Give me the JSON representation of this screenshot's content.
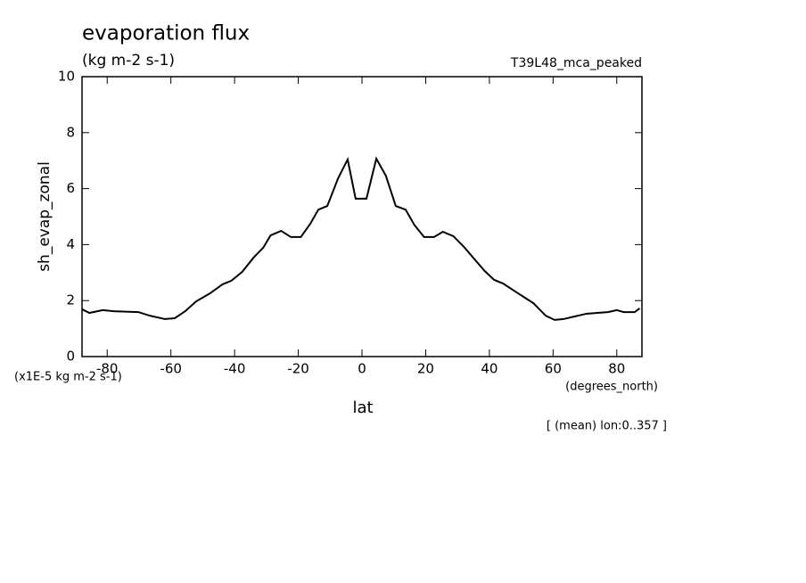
{
  "chart_data": {
    "type": "line",
    "title": "evaporation flux",
    "subtitle": "(kg m-2 s-1)",
    "dataset_label": "T39L48_mca_peaked",
    "y_label": "sh_evap_zonal",
    "y_units": "(x1E-5 kg m-2 s-1)",
    "x_label": "lat",
    "x_units": "(degrees_north)",
    "annotation": "[ (mean) lon:0..357 ]",
    "x": [
      -87.9,
      -85.6,
      -81.4,
      -78,
      -70.2,
      -66.6,
      -61.9,
      -58.8,
      -55.5,
      -52.1,
      -47.7,
      -43.8,
      -41,
      -37.6,
      -34,
      -31,
      -28.7,
      -25.4,
      -22.3,
      -19.2,
      -16.2,
      -13.7,
      -10.9,
      -7.5,
      -4.5,
      -2,
      1.4,
      4.5,
      7.5,
      10.6,
      13.7,
      16.4,
      19.5,
      22.6,
      25.4,
      28.7,
      32,
      35.4,
      38.5,
      41.5,
      44.3,
      48.2,
      51.6,
      53.8,
      57.7,
      60.5,
      63.3,
      66.6,
      70.5,
      73.9,
      77.2,
      80,
      82.2,
      85.6,
      87.2
    ],
    "series": [
      {
        "name": "sh_evap_zonal",
        "color": "#000000",
        "values": [
          1.69,
          1.56,
          1.66,
          1.62,
          1.59,
          1.46,
          1.34,
          1.37,
          1.62,
          1.97,
          2.26,
          2.58,
          2.71,
          3.03,
          3.54,
          3.89,
          4.33,
          4.49,
          4.27,
          4.27,
          4.75,
          5.25,
          5.38,
          6.37,
          7.04,
          5.64,
          5.64,
          7.07,
          6.46,
          5.38,
          5.25,
          4.71,
          4.27,
          4.27,
          4.46,
          4.3,
          3.92,
          3.47,
          3.06,
          2.74,
          2.61,
          2.32,
          2.07,
          1.91,
          1.46,
          1.31,
          1.34,
          1.43,
          1.53,
          1.56,
          1.59,
          1.66,
          1.59,
          1.59,
          1.72
        ]
      }
    ],
    "xlim": [
      -87.9,
      87.9
    ],
    "xticks": [
      -80,
      -60,
      -40,
      -20,
      0,
      20,
      40,
      60,
      80
    ],
    "ylim": [
      0,
      10
    ],
    "yticks": [
      0,
      2,
      4,
      6,
      8,
      10
    ]
  }
}
